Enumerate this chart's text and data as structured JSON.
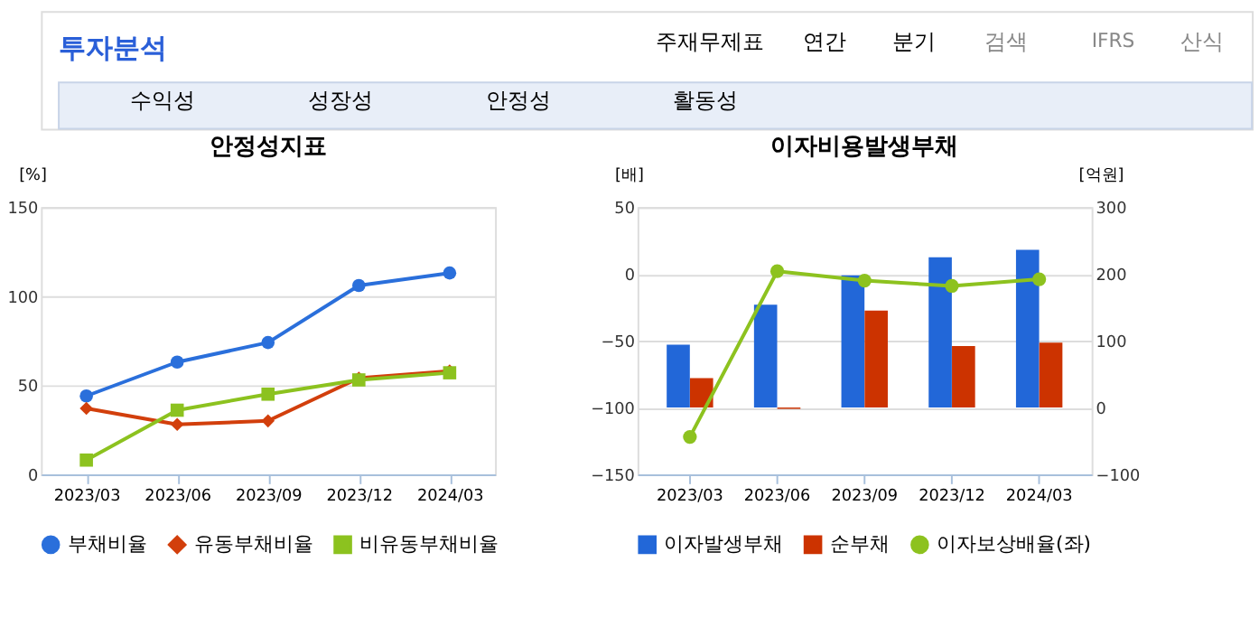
{
  "chart_data": [
    {
      "type": "line",
      "title": "안정성지표",
      "ylabel": "[%]",
      "categories": [
        "2023/03",
        "2023/06",
        "2023/09",
        "2023/12",
        "2024/03"
      ],
      "ylim": [
        0,
        150
      ],
      "yticks": [
        0,
        50,
        100,
        150
      ],
      "grid": "y",
      "legend": "bottom",
      "annotations": [
        "투자분석",
        "주재무제표",
        "연간",
        "분기",
        "검색",
        "IFRS",
        "산식",
        "수익성",
        "성장성",
        "안정성",
        "활동성"
      ],
      "series": [
        {
          "name": "부채비율",
          "color": "#2a6fdb",
          "marker": "circle",
          "values": [
            44,
            63,
            74,
            106,
            113
          ]
        },
        {
          "name": "유동부채비율",
          "color": "#d23f0c",
          "marker": "diamond",
          "values": [
            37,
            28,
            30,
            54,
            58
          ]
        },
        {
          "name": "비유동부채비율",
          "color": "#8cc21f",
          "marker": "square",
          "values": [
            8,
            36,
            45,
            53,
            57
          ]
        }
      ]
    },
    {
      "type": "bar",
      "title": "이자비용발생부채",
      "ylabel": "[배]",
      "y2label": "[억원]",
      "categories": [
        "2023/03",
        "2023/06",
        "2023/09",
        "2023/12",
        "2024/03"
      ],
      "ylim": [
        -150,
        50
      ],
      "yticks": [
        -150,
        -100,
        -50,
        0,
        50
      ],
      "y2lim": [
        -100,
        300
      ],
      "y2ticks": [
        -100,
        0,
        100,
        200,
        300
      ],
      "grid": "y",
      "legend": "bottom",
      "series": [
        {
          "name": "이자발생부채",
          "color": "#2267d8",
          "axis": "y2",
          "values": [
            94,
            154,
            198,
            225,
            236
          ]
        },
        {
          "name": "순부채",
          "color": "#cc3300",
          "axis": "y2",
          "values": [
            44,
            -2,
            145,
            92,
            97
          ]
        },
        {
          "name": "이자보상배율(좌)",
          "type": "line",
          "color": "#8dc21f",
          "marker": "circle",
          "axis": "y",
          "values": [
            -122,
            2,
            -5,
            -9,
            -4
          ]
        }
      ]
    }
  ]
}
